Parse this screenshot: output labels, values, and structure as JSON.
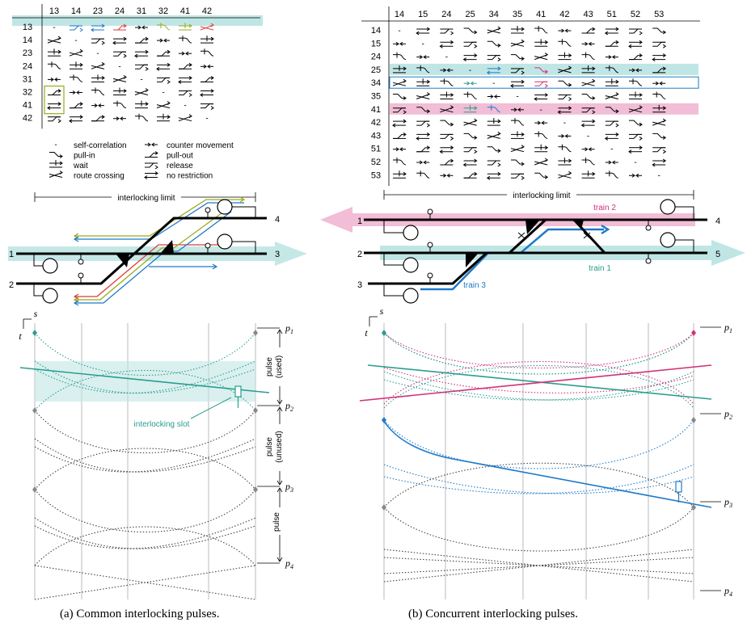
{
  "left": {
    "cols": [
      "13",
      "14",
      "23",
      "24",
      "31",
      "32",
      "41",
      "42"
    ],
    "rows": [
      "13",
      "14",
      "23",
      "24",
      "31",
      "32",
      "41",
      "42"
    ],
    "legend": {
      "self": "self-correlation",
      "counter": "counter movement",
      "pullin": "pull-in",
      "pullout": "pull-out",
      "wait": "wait",
      "release": "release",
      "crossing": "route crossing",
      "none": "no restriction"
    },
    "limit_label": "interlocking limit",
    "tracks": [
      "1",
      "2",
      "3",
      "4"
    ],
    "pulse_labels": [
      "pulse\n(used)",
      "pulse\n(unused)",
      "pulse"
    ],
    "pulse_used": "pulse",
    "pulse_used_sub": "(used)",
    "pulse_unused": "pulse",
    "pulse_unused_sub": "(unused)",
    "pulse_plain": "pulse",
    "slot_label": "interlocking slot",
    "p": [
      "p1",
      "p2",
      "p3",
      "p4"
    ],
    "axis_s": "s",
    "axis_t": "t",
    "caption": "(a) Common interlocking pulses."
  },
  "right": {
    "cols": [
      "14",
      "15",
      "24",
      "25",
      "34",
      "35",
      "41",
      "42",
      "43",
      "51",
      "52",
      "53"
    ],
    "rows": [
      "14",
      "15",
      "24",
      "25",
      "34",
      "35",
      "41",
      "42",
      "43",
      "51",
      "52",
      "53"
    ],
    "limit_label": "interlocking limit",
    "tracks": [
      "1",
      "2",
      "3",
      "4",
      "5"
    ],
    "train1": "train 1",
    "train2": "train 2",
    "train3": "train 3",
    "p": [
      "p1",
      "p2",
      "p3",
      "p4"
    ],
    "axis_s": "s",
    "axis_t": "t",
    "caption": "(b) Concurrent interlocking pulses."
  },
  "colors": {
    "teal": "#2a9d8f",
    "teal_light": "#bfe6e4",
    "pink": "#d0307a",
    "pink_light": "#f2bdd6",
    "blue": "#1f7ac9",
    "red": "#e03a3a",
    "olive": "#9aab1c"
  }
}
